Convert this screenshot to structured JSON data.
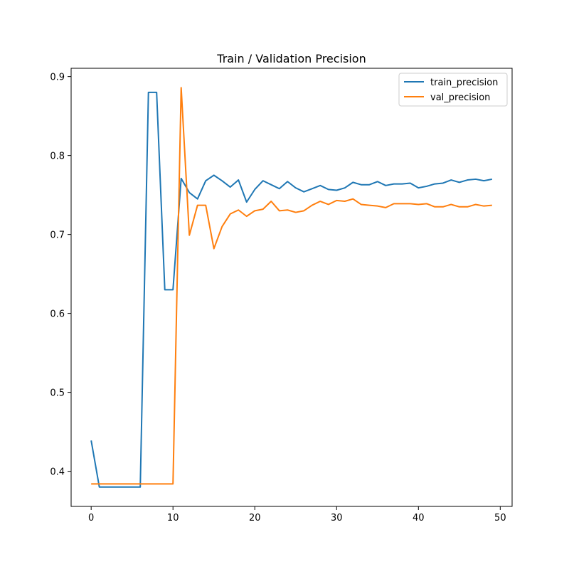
{
  "chart_data": {
    "type": "line",
    "title": "Train / Validation Precision",
    "xlabel": "",
    "ylabel": "",
    "xlim": [
      -2.45,
      51.45
    ],
    "ylim": [
      0.3555,
      0.9105
    ],
    "xticks": [
      0,
      10,
      20,
      30,
      40,
      50
    ],
    "yticks": [
      0.4,
      0.5,
      0.6,
      0.7,
      0.8,
      0.9
    ],
    "xtick_labels": [
      "0",
      "10",
      "20",
      "30",
      "40",
      "50"
    ],
    "ytick_labels": [
      "0.4",
      "0.5",
      "0.6",
      "0.7",
      "0.8",
      "0.9"
    ],
    "grid": false,
    "legend_position": "top-right",
    "series": [
      {
        "name": "train_precision",
        "color": "#1f77b4",
        "x": [
          0,
          1,
          2,
          3,
          4,
          5,
          6,
          7,
          8,
          9,
          10,
          11,
          12,
          13,
          14,
          15,
          16,
          17,
          18,
          19,
          20,
          21,
          22,
          23,
          24,
          25,
          26,
          27,
          28,
          29,
          30,
          31,
          32,
          33,
          34,
          35,
          36,
          37,
          38,
          39,
          40,
          41,
          42,
          43,
          44,
          45,
          46,
          47,
          48,
          49
        ],
        "values": [
          0.439,
          0.38,
          0.38,
          0.38,
          0.38,
          0.38,
          0.38,
          0.88,
          0.88,
          0.63,
          0.63,
          0.771,
          0.753,
          0.745,
          0.768,
          0.775,
          0.768,
          0.76,
          0.769,
          0.741,
          0.757,
          0.768,
          0.763,
          0.758,
          0.767,
          0.759,
          0.754,
          0.758,
          0.762,
          0.757,
          0.756,
          0.759,
          0.766,
          0.763,
          0.763,
          0.767,
          0.762,
          0.764,
          0.764,
          0.765,
          0.759,
          0.761,
          0.764,
          0.765,
          0.769,
          0.766,
          0.769,
          0.77,
          0.768,
          0.77
        ]
      },
      {
        "name": "val_precision",
        "color": "#ff7f0e",
        "x": [
          0,
          1,
          2,
          3,
          4,
          5,
          6,
          7,
          8,
          9,
          10,
          11,
          12,
          13,
          14,
          15,
          16,
          17,
          18,
          19,
          20,
          21,
          22,
          23,
          24,
          25,
          26,
          27,
          28,
          29,
          30,
          31,
          32,
          33,
          34,
          35,
          36,
          37,
          38,
          39,
          40,
          41,
          42,
          43,
          44,
          45,
          46,
          47,
          48,
          49
        ],
        "values": [
          0.384,
          0.384,
          0.384,
          0.384,
          0.384,
          0.384,
          0.384,
          0.384,
          0.384,
          0.384,
          0.384,
          0.886,
          0.699,
          0.737,
          0.737,
          0.682,
          0.71,
          0.726,
          0.731,
          0.723,
          0.73,
          0.732,
          0.742,
          0.73,
          0.731,
          0.728,
          0.73,
          0.737,
          0.742,
          0.738,
          0.743,
          0.742,
          0.745,
          0.738,
          0.737,
          0.736,
          0.734,
          0.739,
          0.739,
          0.739,
          0.738,
          0.739,
          0.735,
          0.735,
          0.738,
          0.735,
          0.735,
          0.738,
          0.736,
          0.737
        ]
      }
    ]
  }
}
